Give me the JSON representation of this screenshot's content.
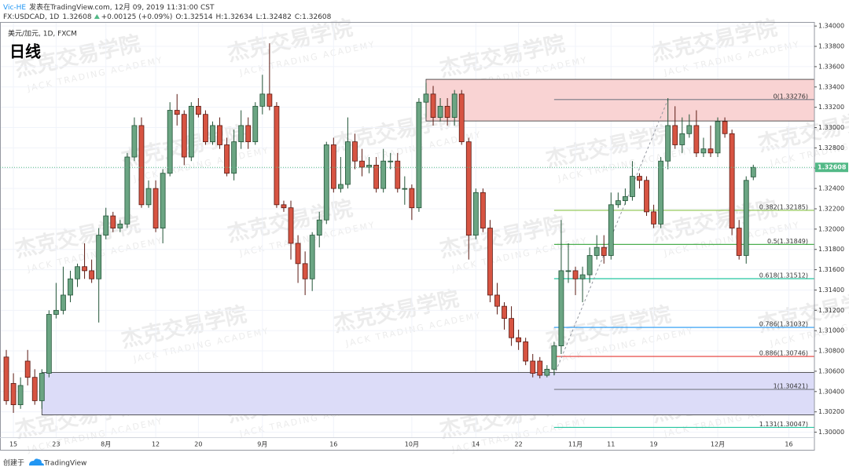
{
  "header": {
    "author": "Vic-HE",
    "published": "发表在TradingView.com, 12月 09, 2019 11:31:00 CST",
    "symbol": "FX:USDCAD, 1D",
    "change": "+0.00125 (+0.09%)",
    "ohlc_labels": [
      "O:",
      "H:",
      "L:",
      "C:"
    ]
  },
  "footer": {
    "created": "创建于",
    "brand": "TradingView"
  },
  "watermark": {
    "title": "杰克交易学院",
    "subtitle": "JACK TRADING ACADEMY"
  },
  "chart_data": {
    "type": "candlestick",
    "title": "日线",
    "subtitle": "美元/加元, 1D, FXCM",
    "categories": [
      null,
      "15",
      null,
      null,
      null,
      null,
      null,
      "23",
      null,
      null,
      null,
      null,
      null,
      null,
      "8月",
      null,
      null,
      null,
      null,
      null,
      null,
      "12",
      null,
      null,
      null,
      null,
      null,
      "20",
      null,
      null,
      null,
      null,
      null,
      null,
      null,
      null,
      "9月",
      null,
      null,
      null,
      null,
      null,
      null,
      null,
      null,
      null,
      "16",
      null,
      null,
      null,
      null,
      null,
      null,
      null,
      null,
      null,
      null,
      "10月",
      null,
      null,
      null,
      null,
      null,
      null,
      null,
      null,
      "14",
      null,
      null,
      null,
      null,
      null,
      "22",
      null,
      null,
      null,
      null,
      null,
      null,
      null,
      "11月",
      null,
      null,
      null,
      null,
      "11",
      null,
      null,
      null,
      null,
      null,
      "19",
      null,
      null,
      null,
      null,
      null,
      null,
      null,
      null,
      "12月",
      null,
      null,
      null,
      null,
      null,
      null,
      null,
      null,
      null,
      "16"
    ],
    "open": [
      1.3074,
      1.3048,
      1.3027,
      1.307,
      1.3054,
      1.3031,
      1.3058,
      1.3116,
      1.312,
      1.3135,
      1.3151,
      1.3163,
      1.3159,
      1.3151,
      1.3194,
      1.3213,
      1.3201,
      1.3205,
      1.3271,
      1.3302,
      1.3224,
      1.324,
      1.3201,
      1.3255,
      1.3317,
      1.3313,
      1.3271,
      1.3321,
      1.3313,
      1.3286,
      1.3302,
      1.3283,
      1.3255,
      1.3286,
      1.3302,
      1.3286,
      1.3321,
      1.3333,
      1.3321,
      1.3224,
      1.3221,
      1.3186,
      1.3166,
      1.3151,
      1.3194,
      1.3209,
      1.3283,
      1.324,
      1.3244,
      1.3286,
      1.3267,
      1.3261,
      1.3263,
      1.324,
      1.3267,
      1.3267,
      1.324,
      1.324,
      1.3221,
      1.3325,
      1.3333,
      1.331,
      1.3321,
      1.331,
      1.3333,
      1.3286,
      1.3194,
      1.3236,
      1.3201,
      1.3135,
      1.3124,
      1.3112,
      1.3093,
      1.3089,
      1.307,
      1.307,
      1.3056,
      1.3062,
      1.3085,
      1.3159,
      1.3159,
      1.3151,
      1.3155,
      1.3174,
      1.3182,
      1.3174,
      1.3224,
      1.3228,
      1.3232,
      1.3252,
      1.3248,
      1.3217,
      1.3205,
      1.3267,
      1.3302,
      1.3283,
      1.3294,
      1.3302,
      1.3275,
      1.3279,
      1.3275,
      1.3306,
      1.3294,
      1.3201,
      1.3174,
      1.32514,
      null,
      null,
      null,
      null,
      null
    ],
    "high": [
      1.3081,
      1.3058,
      1.3054,
      1.3081,
      1.3062,
      1.3062,
      1.312,
      1.3147,
      1.3163,
      1.3159,
      1.3166,
      1.3186,
      1.317,
      1.3201,
      1.3221,
      1.3217,
      1.3209,
      1.3275,
      1.331,
      1.331,
      1.3248,
      1.3248,
      1.3259,
      1.3325,
      1.3333,
      1.3317,
      1.3325,
      1.3329,
      1.3317,
      1.3306,
      1.331,
      1.329,
      1.3298,
      1.3317,
      1.331,
      1.3325,
      1.3352,
      1.3383,
      1.3325,
      1.3228,
      1.3228,
      1.3194,
      1.3178,
      1.3197,
      1.3217,
      1.3286,
      1.329,
      1.3271,
      1.331,
      1.3294,
      1.3279,
      1.3271,
      1.3271,
      1.3279,
      1.3275,
      1.3275,
      1.3252,
      1.3244,
      1.3329,
      1.3344,
      1.3341,
      1.3329,
      1.3329,
      1.3337,
      1.3337,
      1.329,
      1.324,
      1.324,
      1.3209,
      1.3147,
      1.3128,
      1.3124,
      1.3101,
      1.3093,
      1.3077,
      1.3074,
      1.3066,
      1.3089,
      1.3209,
      1.3186,
      1.3163,
      1.3163,
      1.3182,
      1.3194,
      1.3194,
      1.3236,
      1.3236,
      1.324,
      1.3267,
      1.3255,
      1.3252,
      1.3224,
      1.3271,
      1.3329,
      1.3321,
      1.331,
      1.3313,
      1.3317,
      1.329,
      1.3302,
      1.331,
      1.331,
      1.3298,
      1.3209,
      1.3252,
      1.32634,
      null,
      null,
      null,
      null,
      null
    ],
    "low": [
      1.3027,
      1.3019,
      1.3023,
      1.3046,
      1.3027,
      1.3023,
      1.3054,
      1.3112,
      1.3116,
      1.3128,
      1.3143,
      1.3151,
      1.3147,
      1.3108,
      1.319,
      1.3197,
      1.3197,
      1.3201,
      1.3267,
      1.3221,
      1.3221,
      1.3197,
      1.3186,
      1.3252,
      1.3302,
      1.3263,
      1.3267,
      1.331,
      1.3283,
      1.3283,
      1.3279,
      1.3252,
      1.3248,
      1.3279,
      1.3279,
      1.3283,
      1.3313,
      1.3317,
      1.3221,
      1.3217,
      1.317,
      1.3147,
      1.3135,
      1.3139,
      1.3182,
      1.3205,
      1.3236,
      1.3236,
      1.324,
      1.3259,
      1.3252,
      1.3255,
      1.3236,
      1.3236,
      1.3259,
      1.3236,
      1.3224,
      1.3209,
      1.3217,
      1.331,
      1.3302,
      1.3306,
      1.3302,
      1.3302,
      1.3283,
      1.317,
      1.319,
      1.3197,
      1.3128,
      1.3116,
      1.3101,
      1.3085,
      1.3081,
      1.3066,
      1.3054,
      1.3053,
      1.3054,
      1.3056,
      1.3077,
      1.3147,
      1.3135,
      1.3128,
      1.3147,
      1.317,
      1.3166,
      1.317,
      1.3221,
      1.3224,
      1.3228,
      1.324,
      1.3213,
      1.3201,
      1.3201,
      1.3259,
      1.3279,
      1.3275,
      1.329,
      1.3271,
      1.3271,
      1.3271,
      1.3271,
      1.329,
      1.3194,
      1.317,
      1.3166,
      1.32482,
      null,
      null,
      null,
      null,
      null
    ],
    "close": [
      1.3031,
      1.3027,
      1.3046,
      1.3054,
      1.3031,
      1.3058,
      1.3116,
      1.312,
      1.3135,
      1.3151,
      1.3163,
      1.3159,
      1.3151,
      1.3194,
      1.3213,
      1.3201,
      1.3205,
      1.3271,
      1.3302,
      1.3224,
      1.324,
      1.3201,
      1.3255,
      1.3317,
      1.3313,
      1.3271,
      1.3321,
      1.3313,
      1.3286,
      1.3302,
      1.3283,
      1.3255,
      1.3286,
      1.3302,
      1.3286,
      1.3321,
      1.3333,
      1.3321,
      1.3224,
      1.3221,
      1.3186,
      1.3166,
      1.3151,
      1.3194,
      1.3209,
      1.3283,
      1.324,
      1.3244,
      1.3286,
      1.3267,
      1.3261,
      1.3263,
      1.324,
      1.3267,
      1.3267,
      1.324,
      1.324,
      1.3221,
      1.3325,
      1.3333,
      1.331,
      1.3321,
      1.331,
      1.3333,
      1.3286,
      1.3194,
      1.3236,
      1.3201,
      1.3135,
      1.3124,
      1.3112,
      1.3093,
      1.3089,
      1.307,
      1.3058,
      1.3056,
      1.3062,
      1.3085,
      1.3159,
      1.3159,
      1.3151,
      1.3155,
      1.3174,
      1.3182,
      1.3174,
      1.3224,
      1.3228,
      1.3232,
      1.3252,
      1.3248,
      1.3217,
      1.3205,
      1.3267,
      1.3302,
      1.3283,
      1.3294,
      1.3302,
      1.3275,
      1.3279,
      1.3275,
      1.3306,
      1.3294,
      1.3201,
      1.3174,
      1.3248,
      1.32608,
      null,
      null,
      null,
      null,
      null
    ],
    "up_color": "#6ba583",
    "down_color": "#d75442",
    "up_border": "#225437",
    "down_border": "#5b1a13",
    "last_price_color": "#53b987",
    "ylim": [
      1.2995,
      1.3404
    ],
    "yticks": [
      {
        "value": 1.3,
        "label": "1.30000"
      },
      {
        "value": 1.302,
        "label": "1.30200"
      },
      {
        "value": 1.304,
        "label": "1.30400"
      },
      {
        "value": 1.306,
        "label": "1.30600"
      },
      {
        "value": 1.308,
        "label": "1.30800"
      },
      {
        "value": 1.31,
        "label": "1.31000"
      },
      {
        "value": 1.312,
        "label": "1.31200"
      },
      {
        "value": 1.314,
        "label": "1.31400"
      },
      {
        "value": 1.316,
        "label": "1.31600"
      },
      {
        "value": 1.318,
        "label": "1.31800"
      },
      {
        "value": 1.32,
        "label": "1.32000"
      },
      {
        "value": 1.322,
        "label": "1.32200"
      },
      {
        "value": 1.324,
        "label": "1.32400"
      },
      {
        "value": 1.326,
        "label": "1.32600"
      },
      {
        "value": 1.328,
        "label": "1.32800"
      },
      {
        "value": 1.33,
        "label": "1.33000"
      },
      {
        "value": 1.332,
        "label": "1.33200"
      },
      {
        "value": 1.334,
        "label": "1.33400"
      },
      {
        "value": 1.336,
        "label": "1.33600"
      },
      {
        "value": 1.338,
        "label": "1.33800"
      },
      {
        "value": 1.34,
        "label": "1.34000"
      }
    ],
    "grid": true,
    "zones": [
      {
        "start": 59,
        "range": [
          1.33065,
          1.33475
        ],
        "color": "#f9d3d3"
      },
      {
        "start": 5,
        "range": [
          1.3017,
          1.30588
        ],
        "color": "#dcdcf8"
      }
    ],
    "fib": {
      "start": 77,
      "levels": [
        {
          "value": 1.33276,
          "label": "0(1.33276)",
          "color": "#787b86"
        },
        {
          "value": 1.32185,
          "label": "0.382(1.32185)",
          "color": "#8bc34a"
        },
        {
          "value": 1.31849,
          "label": "0.5(1.31849)",
          "color": "#4caf50"
        },
        {
          "value": 1.31512,
          "label": "0.618(1.31512)",
          "color": "#26c6a0"
        },
        {
          "value": 1.31032,
          "label": "0.786(1.31032)",
          "color": "#2196f3"
        },
        {
          "value": 1.30746,
          "label": "0.886(1.30746)",
          "color": "#e53935"
        },
        {
          "value": 1.30421,
          "label": "1(1.30421)",
          "color": "#787b86"
        },
        {
          "value": 1.30047,
          "label": "1.131(1.30047)",
          "color": "#26c6a0"
        }
      ]
    },
    "trendline": {
      "x": [
        77,
        93
      ],
      "y": [
        1.3056,
        1.33276
      ]
    }
  }
}
